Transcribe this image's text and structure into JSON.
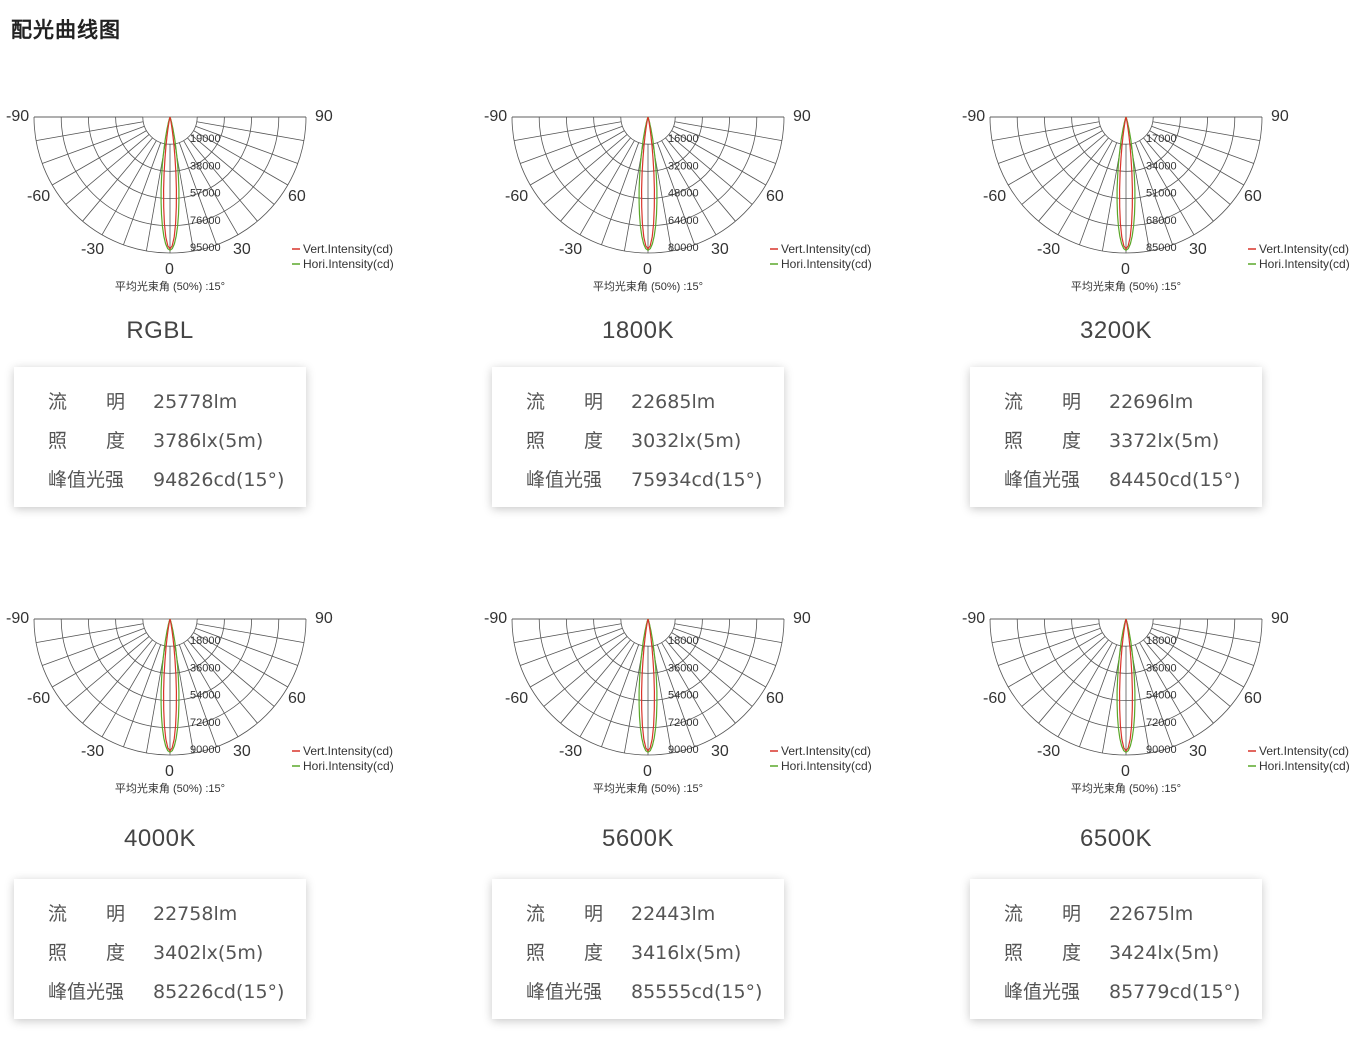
{
  "page": {
    "title": "配光曲线图"
  },
  "legend": {
    "vert": "Vert.Intensity(cd)",
    "hori": "Hori.Intensity(cd)"
  },
  "colors": {
    "vert": "#d9342b",
    "hori": "#5aa82a",
    "grid": "#555555"
  },
  "beam_note": "平均光束角 (50%) :15°",
  "angle_labels": {
    "neg90": "-90",
    "pos90": "90",
    "neg60": "-60",
    "pos60": "60",
    "neg30": "-30",
    "pos30": "30",
    "zero": "0"
  },
  "field_labels": {
    "flux_a": "流",
    "flux_b": "明",
    "illum_a": "照",
    "illum_b": "度",
    "peak": "峰值光强"
  },
  "chart_data": [
    {
      "type": "polar",
      "name": "RGBL",
      "ticks": [
        "19000",
        "38000",
        "57000",
        "76000",
        "95000"
      ],
      "flux": "25778lm",
      "illuminance": "3786lx(5m)",
      "peak": "94826cd(15°)"
    },
    {
      "type": "polar",
      "name": "1800K",
      "ticks": [
        "16000",
        "32000",
        "48000",
        "64000",
        "80000"
      ],
      "flux": "22685lm",
      "illuminance": "3032lx(5m)",
      "peak": "75934cd(15°)"
    },
    {
      "type": "polar",
      "name": "3200K",
      "ticks": [
        "17000",
        "34000",
        "51000",
        "68000",
        "85000"
      ],
      "flux": "22696lm",
      "illuminance": "3372lx(5m)",
      "peak": "84450cd(15°)"
    },
    {
      "type": "polar",
      "name": "4000K",
      "ticks": [
        "18000",
        "36000",
        "54000",
        "72000",
        "90000"
      ],
      "flux": "22758lm",
      "illuminance": "3402lx(5m)",
      "peak": "85226cd(15°)"
    },
    {
      "type": "polar",
      "name": "5600K",
      "ticks": [
        "18000",
        "36000",
        "54000",
        "72000",
        "90000"
      ],
      "flux": "22443lm",
      "illuminance": "3416lx(5m)",
      "peak": "85555cd(15°)"
    },
    {
      "type": "polar",
      "name": "6500K",
      "ticks": [
        "18000",
        "36000",
        "54000",
        "72000",
        "90000"
      ],
      "flux": "22675lm",
      "illuminance": "3424lx(5m)",
      "peak": "85779cd(15°)"
    }
  ]
}
